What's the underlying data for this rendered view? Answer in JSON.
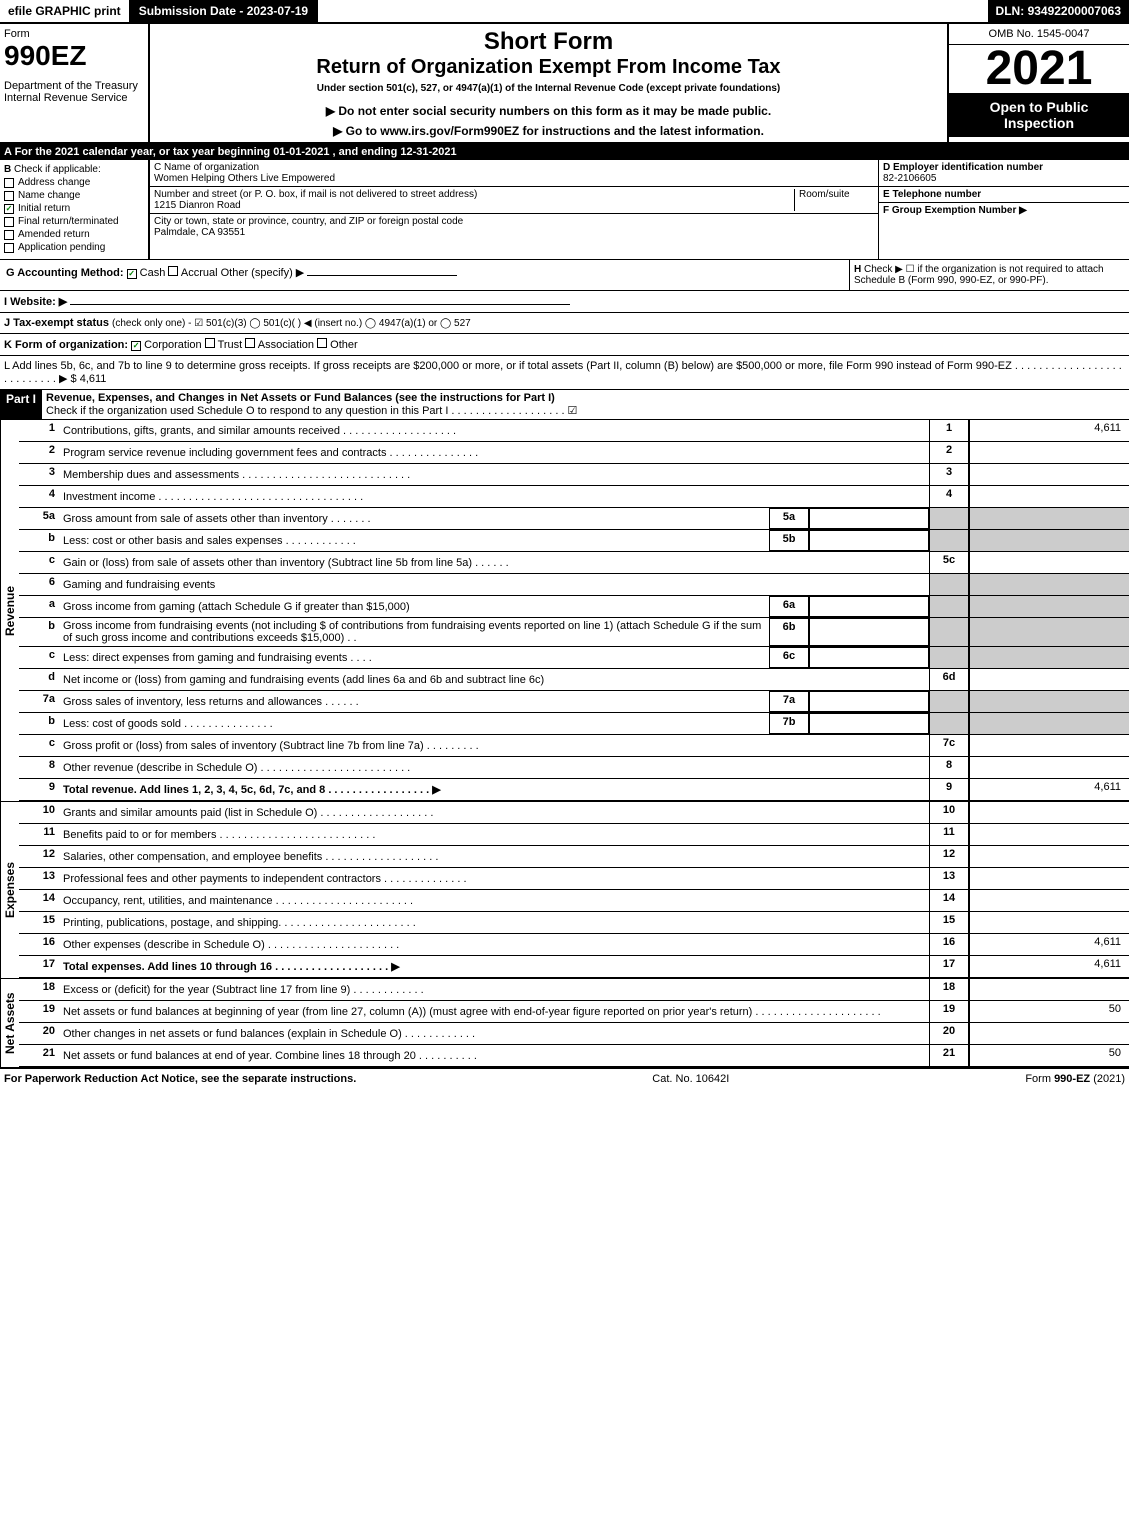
{
  "topbar": {
    "efile": "efile GRAPHIC print",
    "submission": "Submission Date - 2023-07-19",
    "dln_label": "DLN:",
    "dln": "93492200007063"
  },
  "header": {
    "form_word": "Form",
    "form_num": "990EZ",
    "dept": "Department of the Treasury",
    "irs": "Internal Revenue Service",
    "short_form": "Short Form",
    "title": "Return of Organization Exempt From Income Tax",
    "subtitle": "Under section 501(c), 527, or 4947(a)(1) of the Internal Revenue Code (except private foundations)",
    "warn": "▶ Do not enter social security numbers on this form as it may be made public.",
    "goto": "▶ Go to www.irs.gov/Form990EZ for instructions and the latest information.",
    "omb": "OMB No. 1545-0047",
    "year": "2021",
    "open": "Open to Public Inspection"
  },
  "section_a": "A  For the 2021 calendar year, or tax year beginning 01-01-2021 , and ending 12-31-2021",
  "box_b": {
    "title": "B",
    "label": "Check if applicable:",
    "address": "Address change",
    "name": "Name change",
    "initial": "Initial return",
    "final": "Final return/terminated",
    "amended": "Amended return",
    "pending": "Application pending"
  },
  "box_c": {
    "name_label": "C Name of organization",
    "name": "Women Helping Others Live Empowered",
    "street_label": "Number and street (or P. O. box, if mail is not delivered to street address)",
    "room_label": "Room/suite",
    "street": "1215 Dianron Road",
    "city_label": "City or town, state or province, country, and ZIP or foreign postal code",
    "city": "Palmdale, CA  93551"
  },
  "box_d": {
    "ein_label": "D Employer identification number",
    "ein": "82-2106605",
    "phone_label": "E Telephone number",
    "group_label": "F Group Exemption Number  ▶"
  },
  "g": {
    "label": "G Accounting Method:",
    "cash": "Cash",
    "accrual": "Accrual",
    "other": "Other (specify) ▶"
  },
  "h": {
    "label": "H",
    "text": "Check ▶ ☐ if the organization is not required to attach Schedule B (Form 990, 990-EZ, or 990-PF)."
  },
  "i": {
    "label": "I Website: ▶"
  },
  "j": {
    "label": "J Tax-exempt status",
    "rest": "(check only one) - ☑ 501(c)(3) ◯ 501(c)(  ) ◀ (insert no.) ◯ 4947(a)(1) or ◯ 527"
  },
  "k": {
    "label": "K Form of organization:",
    "corp": "Corporation",
    "trust": "Trust",
    "assoc": "Association",
    "other": "Other"
  },
  "l": {
    "text": "L Add lines 5b, 6c, and 7b to line 9 to determine gross receipts. If gross receipts are $200,000 or more, or if total assets (Part II, column (B) below) are $500,000 or more, file Form 990 instead of Form 990-EZ  .  .  .  .  .  .  .  .  .  .  .  .  .  .  .  .  .  .  .  .  .  .  .  .  .  .  .  ▶ $ 4,611"
  },
  "part1": {
    "badge": "Part I",
    "title": "Revenue, Expenses, and Changes in Net Assets or Fund Balances (see the instructions for Part I)",
    "check": "Check if the organization used Schedule O to respond to any question in this Part I  .  .  .  .  .  .  .  .  .  .  .  .  .  .  .  .  .  .  .  ☑"
  },
  "side": {
    "revenue": "Revenue",
    "expenses": "Expenses",
    "net": "Net Assets"
  },
  "lines": {
    "1": {
      "n": "1",
      "d": "Contributions, gifts, grants, and similar amounts received  .  .  .  .  .  .  .  .  .  .  .  .  .  .  .  .  .  .  .",
      "r": "1",
      "v": "4,611"
    },
    "2": {
      "n": "2",
      "d": "Program service revenue including government fees and contracts  .  .  .  .  .  .  .  .  .  .  .  .  .  .  .",
      "r": "2",
      "v": ""
    },
    "3": {
      "n": "3",
      "d": "Membership dues and assessments  .  .  .  .  .  .  .  .  .  .  .  .  .  .  .  .  .  .  .  .  .  .  .  .  .  .  .  .",
      "r": "3",
      "v": ""
    },
    "4": {
      "n": "4",
      "d": "Investment income  .  .  .  .  .  .  .  .  .  .  .  .  .  .  .  .  .  .  .  .  .  .  .  .  .  .  .  .  .  .  .  .  .  .",
      "r": "4",
      "v": ""
    },
    "5a": {
      "n": "5a",
      "d": "Gross amount from sale of assets other than inventory  .  .  .  .  .  .  .",
      "sc": "5a"
    },
    "5b": {
      "n": "b",
      "d": "Less: cost or other basis and sales expenses  .  .  .  .  .  .  .  .  .  .  .  .",
      "sc": "5b"
    },
    "5c": {
      "n": "c",
      "d": "Gain or (loss) from sale of assets other than inventory (Subtract line 5b from line 5a)  .  .  .  .  .  .",
      "r": "5c",
      "v": ""
    },
    "6": {
      "n": "6",
      "d": "Gaming and fundraising events"
    },
    "6a": {
      "n": "a",
      "d": "Gross income from gaming (attach Schedule G if greater than $15,000)",
      "sc": "6a"
    },
    "6b": {
      "n": "b",
      "d": "Gross income from fundraising events (not including $                    of contributions from fundraising events reported on line 1) (attach Schedule G if the sum of such gross income and contributions exceeds $15,000)    .  .",
      "sc": "6b"
    },
    "6c": {
      "n": "c",
      "d": "Less: direct expenses from gaming and fundraising events    .  .  .  .",
      "sc": "6c"
    },
    "6d": {
      "n": "d",
      "d": "Net income or (loss) from gaming and fundraising events (add lines 6a and 6b and subtract line 6c)",
      "r": "6d",
      "v": ""
    },
    "7a": {
      "n": "7a",
      "d": "Gross sales of inventory, less returns and allowances  .  .  .  .  .  .",
      "sc": "7a"
    },
    "7b": {
      "n": "b",
      "d": "Less: cost of goods sold          .  .  .  .  .  .  .  .  .  .  .  .  .  .  .",
      "sc": "7b"
    },
    "7c": {
      "n": "c",
      "d": "Gross profit or (loss) from sales of inventory (Subtract line 7b from line 7a)  .  .  .  .  .  .  .  .  .",
      "r": "7c",
      "v": ""
    },
    "8": {
      "n": "8",
      "d": "Other revenue (describe in Schedule O)  .  .  .  .  .  .  .  .  .  .  .  .  .  .  .  .  .  .  .  .  .  .  .  .  .",
      "r": "8",
      "v": ""
    },
    "9": {
      "n": "9",
      "d": "Total revenue. Add lines 1, 2, 3, 4, 5c, 6d, 7c, and 8    .  .  .  .  .  .  .  .  .  .  .  .  .  .  .  .  .    ▶",
      "r": "9",
      "v": "4,611"
    },
    "10": {
      "n": "10",
      "d": "Grants and similar amounts paid (list in Schedule O)  .  .  .  .  .  .  .  .  .  .  .  .  .  .  .  .  .  .  .",
      "r": "10",
      "v": ""
    },
    "11": {
      "n": "11",
      "d": "Benefits paid to or for members      .  .  .  .  .  .  .  .  .  .  .  .  .  .  .  .  .  .  .  .  .  .  .  .  .  .",
      "r": "11",
      "v": ""
    },
    "12": {
      "n": "12",
      "d": "Salaries, other compensation, and employee benefits  .  .  .  .  .  .  .  .  .  .  .  .  .  .  .  .  .  .  .",
      "r": "12",
      "v": ""
    },
    "13": {
      "n": "13",
      "d": "Professional fees and other payments to independent contractors  .  .  .  .  .  .  .  .  .  .  .  .  .  .",
      "r": "13",
      "v": ""
    },
    "14": {
      "n": "14",
      "d": "Occupancy, rent, utilities, and maintenance  .  .  .  .  .  .  .  .  .  .  .  .  .  .  .  .  .  .  .  .  .  .  .",
      "r": "14",
      "v": ""
    },
    "15": {
      "n": "15",
      "d": "Printing, publications, postage, and shipping.  .  .  .  .  .  .  .  .  .  .  .  .  .  .  .  .  .  .  .  .  .  .",
      "r": "15",
      "v": ""
    },
    "16": {
      "n": "16",
      "d": "Other expenses (describe in Schedule O)      .  .  .  .  .  .  .  .  .  .  .  .  .  .  .  .  .  .  .  .  .  .",
      "r": "16",
      "v": "4,611"
    },
    "17": {
      "n": "17",
      "d": "Total expenses. Add lines 10 through 16      .  .  .  .  .  .  .  .  .  .  .  .  .  .  .  .  .  .  .    ▶",
      "r": "17",
      "v": "4,611"
    },
    "18": {
      "n": "18",
      "d": "Excess or (deficit) for the year (Subtract line 17 from line 9)         .  .  .  .  .  .  .  .  .  .  .  .",
      "r": "18",
      "v": ""
    },
    "19": {
      "n": "19",
      "d": "Net assets or fund balances at beginning of year (from line 27, column (A)) (must agree with end-of-year figure reported on prior year's return)  .  .  .  .  .  .  .  .  .  .  .  .  .  .  .  .  .  .  .  .  .",
      "r": "19",
      "v": "50"
    },
    "20": {
      "n": "20",
      "d": "Other changes in net assets or fund balances (explain in Schedule O)  .  .  .  .  .  .  .  .  .  .  .  .",
      "r": "20",
      "v": ""
    },
    "21": {
      "n": "21",
      "d": "Net assets or fund balances at end of year. Combine lines 18 through 20  .  .  .  .  .  .  .  .  .  .",
      "r": "21",
      "v": "50"
    }
  },
  "footer": {
    "left": "For Paperwork Reduction Act Notice, see the separate instructions.",
    "mid": "Cat. No. 10642I",
    "right": "Form 990-EZ (2021)"
  }
}
